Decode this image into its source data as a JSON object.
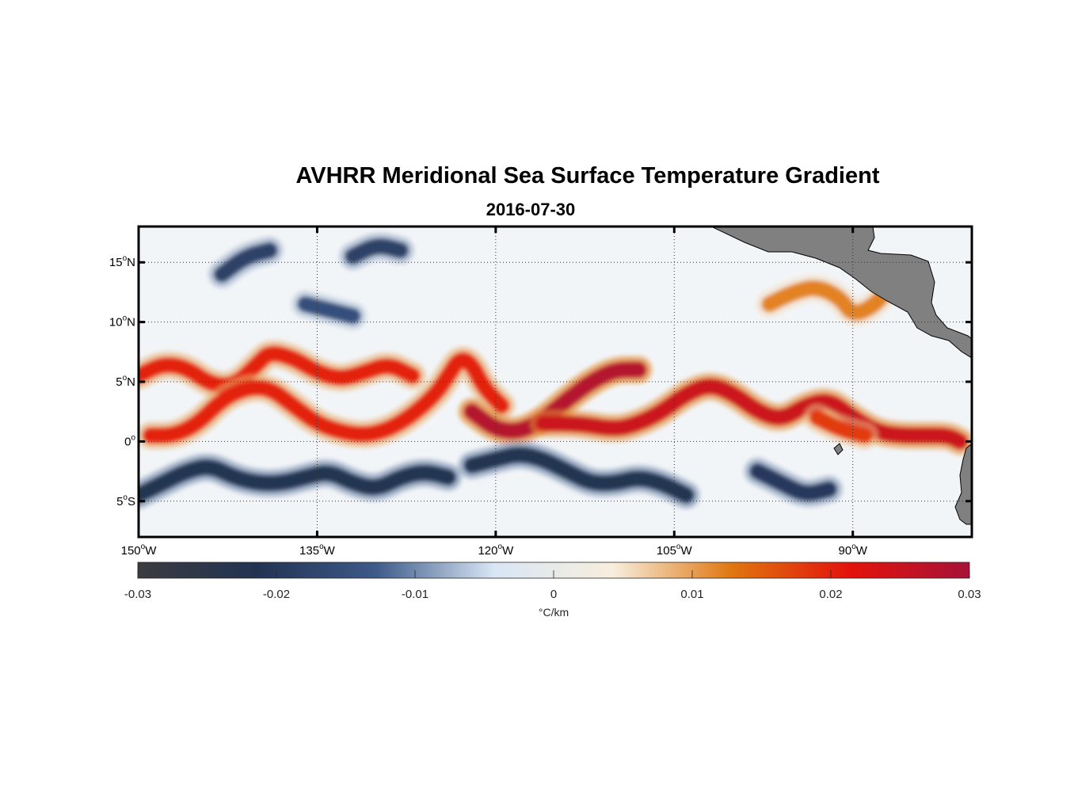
{
  "chart_data": {
    "type": "heatmap",
    "title": "AVHRR Meridional Sea Surface Temperature Gradient",
    "subtitle": "2016-07-30",
    "x_axis": {
      "range": [
        -150,
        -80
      ],
      "ticks": [
        -150,
        -135,
        -120,
        -105,
        -90
      ],
      "tick_labels": [
        {
          "num": "150",
          "deg": "o",
          "dir": "W"
        },
        {
          "num": "135",
          "deg": "o",
          "dir": "W"
        },
        {
          "num": "120",
          "deg": "o",
          "dir": "W"
        },
        {
          "num": "105",
          "deg": "o",
          "dir": "W"
        },
        {
          "num": "90",
          "deg": "o",
          "dir": "W"
        }
      ]
    },
    "y_axis": {
      "range": [
        -8,
        18
      ],
      "ticks": [
        15,
        10,
        5,
        0,
        -5
      ],
      "tick_labels": [
        {
          "num": "15",
          "deg": "o",
          "dir": "N"
        },
        {
          "num": "10",
          "deg": "o",
          "dir": "N"
        },
        {
          "num": "5",
          "deg": "o",
          "dir": "N"
        },
        {
          "num": "0",
          "deg": "o",
          "dir": ""
        },
        {
          "num": "5",
          "deg": "o",
          "dir": "S"
        }
      ]
    },
    "grid": true,
    "colorbar": {
      "range": [
        -0.03,
        0.03
      ],
      "ticks": [
        -0.03,
        -0.02,
        -0.01,
        0,
        0.01,
        0.02,
        0.03
      ],
      "tick_labels": [
        "-0.03",
        "-0.02",
        "-0.01",
        "0",
        "0.01",
        "0.02",
        "0.03"
      ],
      "label": "°C/km",
      "colors": [
        "#3b3c40",
        "#223352",
        "#3d5a88",
        "#d9e6f5",
        "#f7eedd",
        "#e0760f",
        "#e3120b",
        "#a61239"
      ]
    },
    "features": [
      {
        "type": "positive-front",
        "level": 0.02,
        "path": [
          [
            -150,
            5.5
          ],
          [
            -148,
            6.5
          ],
          [
            -146,
            6.2
          ],
          [
            -144,
            4.8
          ],
          [
            -142,
            4.6
          ],
          [
            -140,
            6.5
          ],
          [
            -139,
            7.5
          ],
          [
            -137,
            7.0
          ],
          [
            -135,
            5.8
          ],
          [
            -133,
            5.2
          ],
          [
            -131,
            5.8
          ],
          [
            -129,
            6.5
          ],
          [
            -127,
            5.5
          ]
        ]
      },
      {
        "type": "positive-front",
        "level": 0.02,
        "path": [
          [
            -149,
            0.5
          ],
          [
            -147,
            0.5
          ],
          [
            -145,
            1.5
          ],
          [
            -143,
            3.5
          ],
          [
            -141,
            4.5
          ],
          [
            -139,
            4.5
          ],
          [
            -137,
            3.0
          ],
          [
            -135,
            1.5
          ],
          [
            -133,
            0.8
          ],
          [
            -131,
            0.5
          ],
          [
            -129,
            1.0
          ],
          [
            -127,
            2.2
          ],
          [
            -125,
            4.0
          ],
          [
            -124,
            5.5
          ],
          [
            -123,
            7.0
          ],
          [
            -122,
            6.5
          ],
          [
            -121,
            4.5
          ],
          [
            -119.5,
            3.0
          ]
        ]
      },
      {
        "type": "positive-front",
        "level": 0.028,
        "path": [
          [
            -122,
            2.5
          ],
          [
            -120,
            1.0
          ],
          [
            -118,
            0.8
          ],
          [
            -116,
            1.8
          ],
          [
            -114,
            3.5
          ],
          [
            -112,
            5.0
          ],
          [
            -110,
            6.0
          ],
          [
            -108,
            6.0
          ]
        ]
      },
      {
        "type": "positive-front",
        "level": 0.025,
        "path": [
          [
            -116,
            1.5
          ],
          [
            -113,
            1.5
          ],
          [
            -110,
            1.0
          ],
          [
            -108,
            1.5
          ],
          [
            -106,
            2.5
          ],
          [
            -104,
            4.0
          ],
          [
            -102,
            4.8
          ],
          [
            -100,
            4.0
          ],
          [
            -98,
            2.5
          ],
          [
            -96,
            1.8
          ],
          [
            -94,
            3.0
          ],
          [
            -92,
            3.5
          ],
          [
            -90,
            2.0
          ],
          [
            -88,
            0.8
          ],
          [
            -86,
            0.5
          ],
          [
            -84,
            0.5
          ],
          [
            -82,
            0.5
          ],
          [
            -81,
            0
          ]
        ]
      },
      {
        "type": "positive-front",
        "level": 0.018,
        "path": [
          [
            -93,
            2.0
          ],
          [
            -91,
            1.0
          ],
          [
            -89,
            0.5
          ]
        ]
      },
      {
        "type": "positive-front",
        "level": 0.012,
        "path": [
          [
            -97,
            11.5
          ],
          [
            -95,
            12.5
          ],
          [
            -93,
            13.0
          ],
          [
            -91,
            12.0
          ],
          [
            -90,
            10.5
          ],
          [
            -88,
            11.5
          ],
          [
            -87,
            13.0
          ]
        ]
      },
      {
        "type": "negative-front",
        "level": -0.022,
        "path": [
          [
            -150,
            -4.5
          ],
          [
            -148,
            -3.5
          ],
          [
            -146,
            -2.5
          ],
          [
            -144,
            -2.0
          ],
          [
            -142,
            -3.0
          ],
          [
            -140,
            -3.5
          ],
          [
            -138,
            -3.5
          ],
          [
            -136,
            -3.0
          ],
          [
            -134,
            -2.5
          ],
          [
            -132,
            -3.5
          ],
          [
            -130,
            -4.0
          ],
          [
            -128,
            -3.0
          ],
          [
            -126,
            -2.5
          ],
          [
            -124,
            -3.0
          ]
        ]
      },
      {
        "type": "negative-front",
        "level": -0.022,
        "path": [
          [
            -122,
            -2.0
          ],
          [
            -120,
            -1.5
          ],
          [
            -118,
            -1.0
          ],
          [
            -116,
            -1.5
          ],
          [
            -114,
            -2.5
          ],
          [
            -112,
            -3.5
          ],
          [
            -110,
            -3.5
          ],
          [
            -108,
            -3.0
          ],
          [
            -106,
            -3.5
          ],
          [
            -104,
            -4.5
          ]
        ]
      },
      {
        "type": "negative-front",
        "level": -0.02,
        "path": [
          [
            -98,
            -2.5
          ],
          [
            -96,
            -3.5
          ],
          [
            -94,
            -4.5
          ],
          [
            -92,
            -4.0
          ]
        ]
      },
      {
        "type": "negative-front",
        "level": -0.018,
        "path": [
          [
            -143,
            14.0
          ],
          [
            -141,
            15.5
          ],
          [
            -139,
            16.0
          ]
        ]
      },
      {
        "type": "negative-front",
        "level": -0.018,
        "path": [
          [
            -132,
            15.5
          ],
          [
            -130,
            16.5
          ],
          [
            -128,
            16.0
          ]
        ]
      },
      {
        "type": "negative-front",
        "level": -0.015,
        "path": [
          [
            -136,
            11.5
          ],
          [
            -134,
            11.0
          ],
          [
            -132,
            10.5
          ]
        ]
      }
    ],
    "land_color": "#808080"
  }
}
